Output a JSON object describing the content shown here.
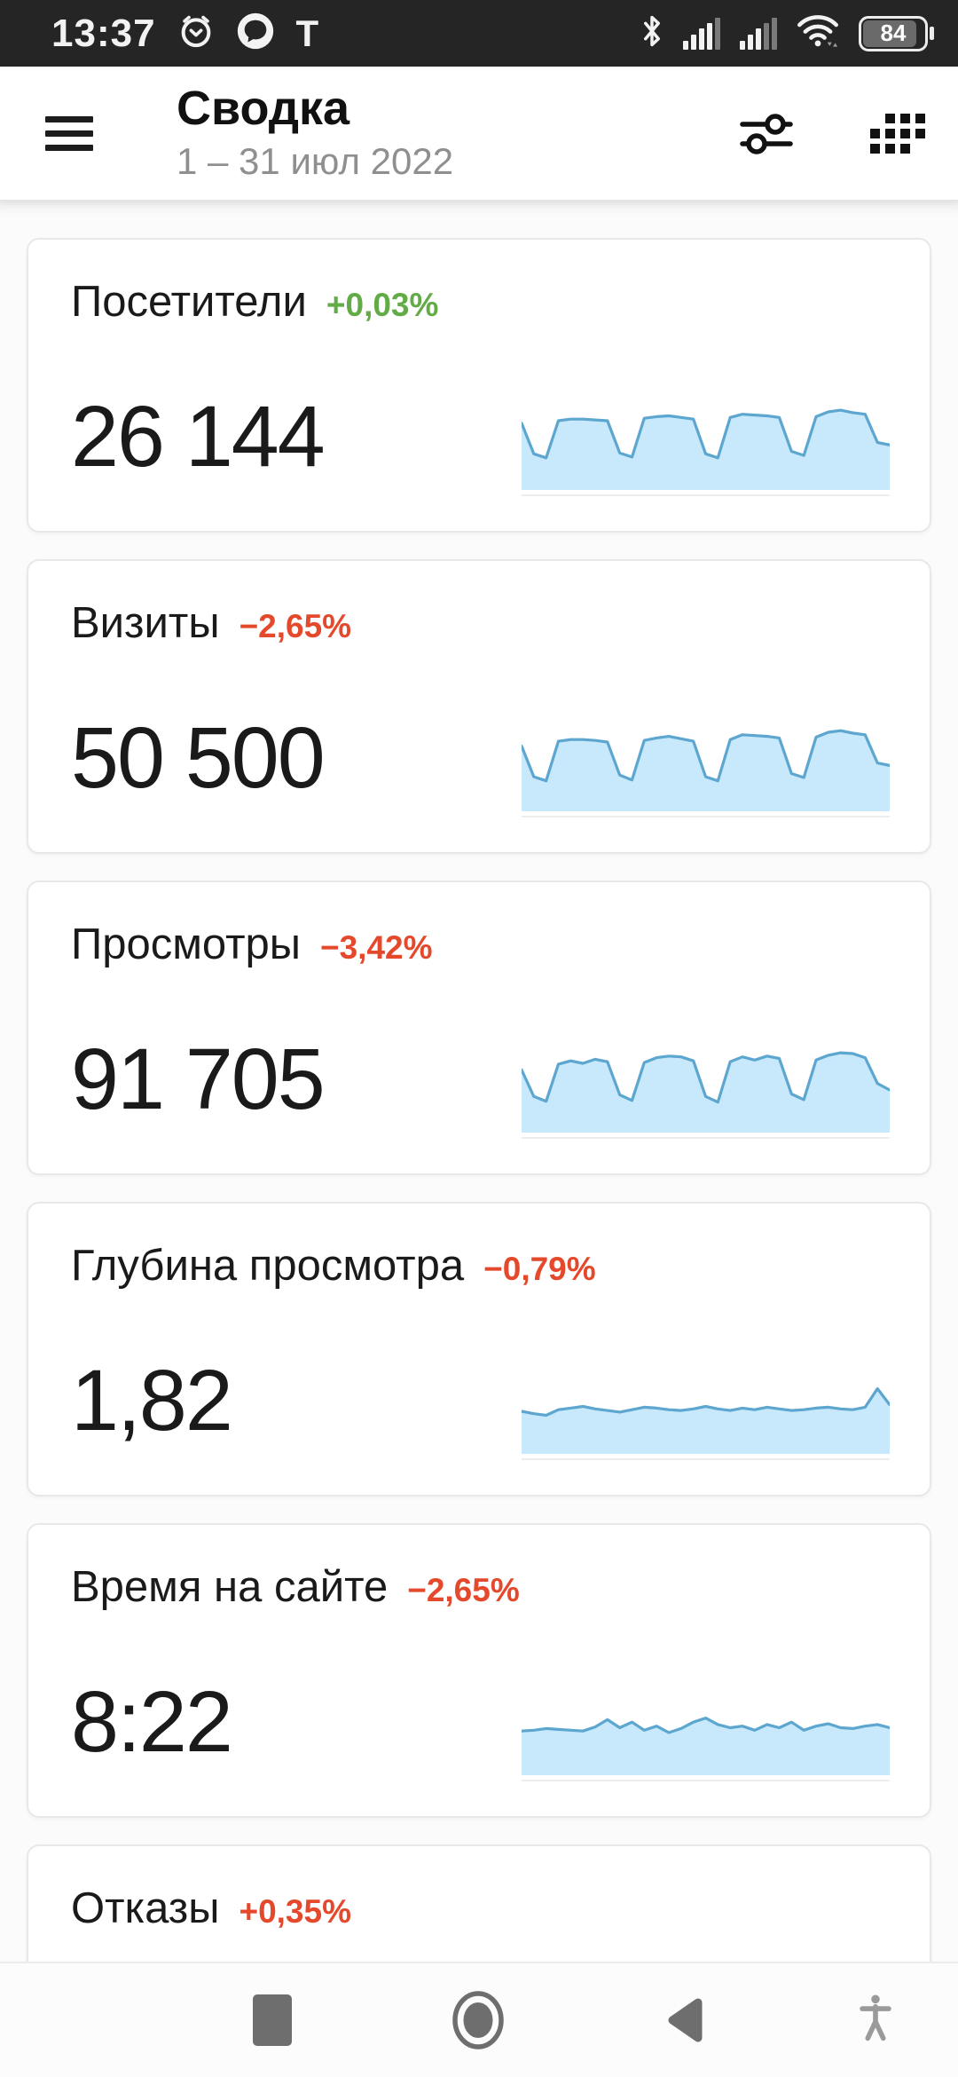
{
  "status_bar": {
    "time": "13:37",
    "left_icons": [
      "alarm-icon",
      "chat-app-icon",
      "letter-t-icon"
    ],
    "letter_icon": "T",
    "right_icons": [
      "bluetooth-icon",
      "cell-signal-icon",
      "cell-signal-icon",
      "wifi-icon",
      "battery-icon"
    ],
    "battery_percent": "84",
    "bg_color": "#252525"
  },
  "header": {
    "title": "Сводка",
    "date_range": "1 – 31 июл 2022",
    "icons": [
      "menu-icon",
      "filter-icon",
      "widgets-icon"
    ]
  },
  "cards": [
    {
      "title": "Посетители",
      "change": "+0,03%",
      "change_color": "#62ab46",
      "value": "26 144",
      "has_sparkline": true
    },
    {
      "title": "Визиты",
      "change": "−2,65%",
      "change_color": "#e4492c",
      "value": "50 500",
      "has_sparkline": true
    },
    {
      "title": "Просмотры",
      "change": "−3,42%",
      "change_color": "#e4492c",
      "value": "91 705",
      "has_sparkline": true
    },
    {
      "title": "Глубина просмотра",
      "change": "−0,79%",
      "change_color": "#e4492c",
      "value": "1,82",
      "has_sparkline": true
    },
    {
      "title": "Время на сайте",
      "change": "−2,65%",
      "change_color": "#e4492c",
      "value": "8:22",
      "has_sparkline": true
    },
    {
      "title": "Отказы",
      "change": "+0,35%",
      "change_color": "#e4492c",
      "value": null,
      "has_sparkline": false
    }
  ],
  "chart_data": [
    {
      "type": "area",
      "name": "Посетители",
      "period": "1 – 31 июл 2022",
      "ylabel": "",
      "unit": "relative scale 0–100 (unlabeled sparkline)",
      "values": [
        80,
        42,
        37,
        83,
        85,
        85,
        84,
        83,
        43,
        38,
        86,
        88,
        89,
        87,
        85,
        42,
        37,
        87,
        91,
        90,
        89,
        87,
        45,
        40,
        88,
        94,
        96,
        93,
        91,
        56,
        53
      ]
    },
    {
      "type": "area",
      "name": "Визиты",
      "period": "1 – 31 июл 2022",
      "unit": "relative scale 0–100 (unlabeled sparkline)",
      "values": [
        78,
        40,
        35,
        84,
        86,
        86,
        85,
        83,
        42,
        36,
        85,
        88,
        90,
        87,
        84,
        40,
        35,
        86,
        92,
        91,
        90,
        88,
        44,
        39,
        89,
        95,
        97,
        94,
        92,
        57,
        54
      ]
    },
    {
      "type": "area",
      "name": "Просмотры",
      "period": "1 – 31 июл 2022",
      "unit": "relative scale 0–100 (unlabeled sparkline)",
      "values": [
        75,
        42,
        36,
        82,
        86,
        83,
        88,
        85,
        44,
        37,
        84,
        90,
        92,
        91,
        86,
        42,
        35,
        85,
        91,
        87,
        92,
        89,
        45,
        38,
        87,
        93,
        96,
        95,
        90,
        58,
        50
      ]
    },
    {
      "type": "area",
      "name": "Глубина просмотра",
      "period": "1 – 31 июл 2022",
      "unit": "relative scale 0–100 (unlabeled sparkline)",
      "values": [
        50,
        47,
        45,
        52,
        54,
        56,
        53,
        51,
        49,
        52,
        55,
        54,
        52,
        51,
        53,
        56,
        53,
        51,
        54,
        52,
        55,
        53,
        51,
        52,
        54,
        55,
        53,
        52,
        55,
        78,
        58
      ]
    },
    {
      "type": "area",
      "name": "Время на сайте",
      "period": "1 – 31 июл 2022",
      "unit": "relative scale 0–100 (unlabeled sparkline)",
      "values": [
        52,
        53,
        55,
        54,
        53,
        52,
        57,
        66,
        56,
        63,
        53,
        58,
        50,
        55,
        63,
        68,
        60,
        56,
        58,
        53,
        60,
        56,
        63,
        53,
        58,
        61,
        56,
        55,
        58,
        60,
        56
      ]
    }
  ],
  "colors": {
    "spark_fill": "#c8e9fb",
    "spark_stroke": "#5ca6cf",
    "positive": "#62ab46",
    "negative": "#e4492c"
  },
  "nav_bar": {
    "buttons": [
      "recents-button",
      "home-button",
      "back-button",
      "accessibility-button"
    ]
  }
}
